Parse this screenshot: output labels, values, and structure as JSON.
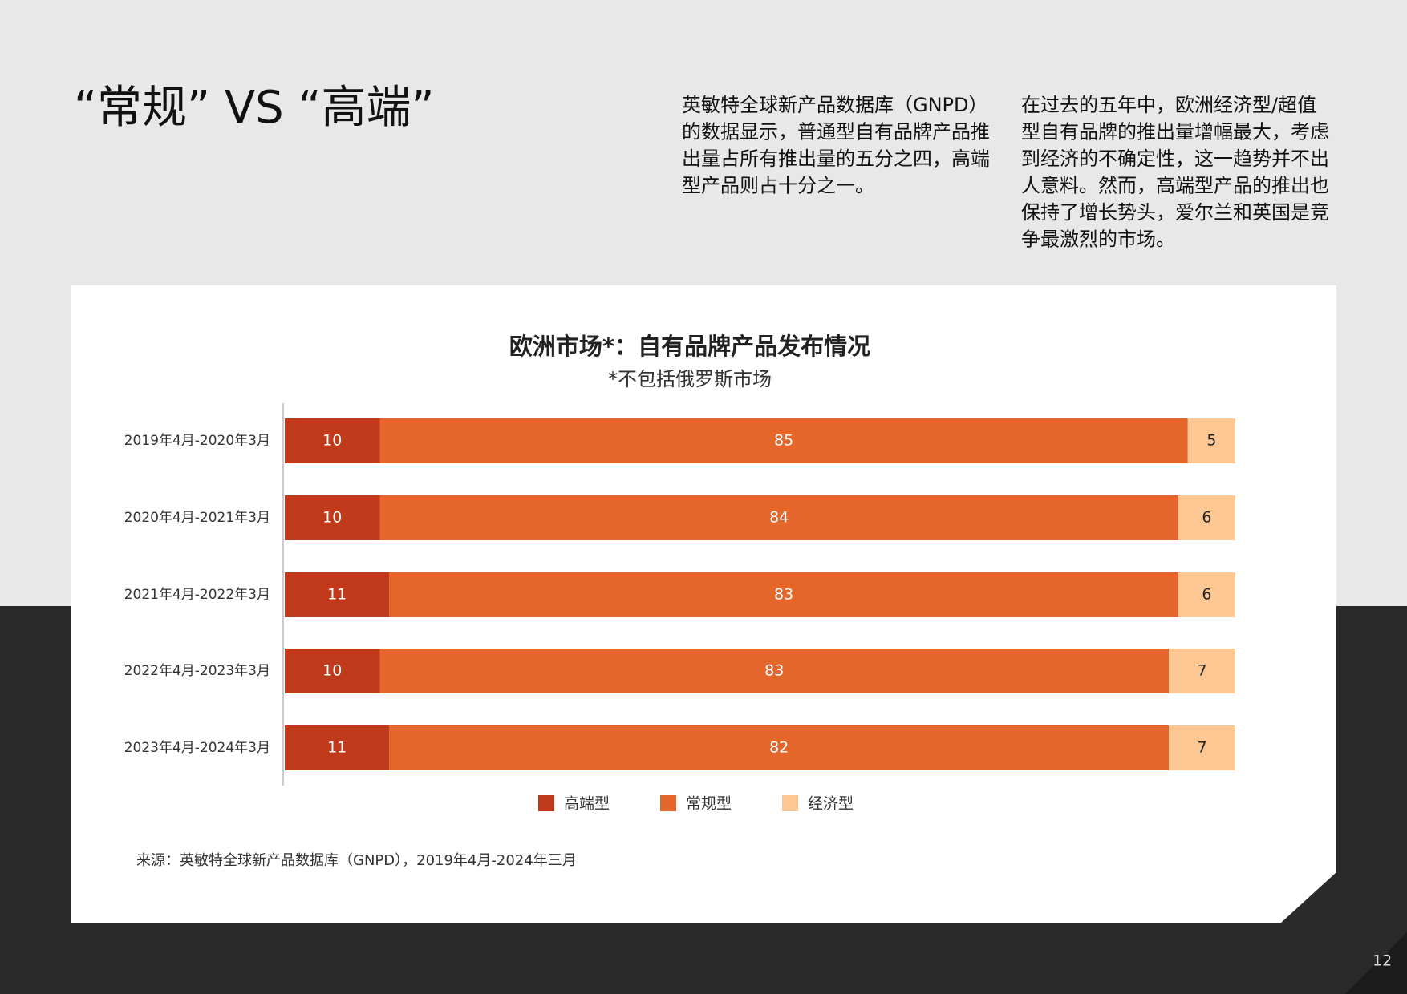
{
  "header": {
    "title": "“常规” VS “高端”"
  },
  "paragraphs": [
    [
      "英敏特全球新产品数据库（GNPD）",
      "的数据显示，普通型自有品牌产品推",
      "出量占所有推出量的五分之四，高端",
      "型产品则占十分之一。"
    ],
    [
      "在过去的五年中，欧洲经济型/超值",
      "型自有品牌的推出量增幅最大，考虑",
      "到经济的不确定性，这一趋势并不出",
      "人意料。然而，高端型产品的推出也",
      "保持了增长势头，爱尔兰和英国是竞",
      "争最激烈的市场。"
    ]
  ],
  "chart_data": {
    "type": "stacked-bar-horizontal",
    "title": "欧洲市场*：自有品牌产品发布情况",
    "subtitle": "*不包括俄罗斯市场",
    "categories": [
      "2019年4月-2020年3月",
      "2020年4月-2021年3月",
      "2021年4月-2022年3月",
      "2022年4月-2023年3月",
      "2023年4月-2024年3月"
    ],
    "series": [
      {
        "name": "高端型",
        "color": "#c0391b",
        "label_color": "#ffffff",
        "values": [
          10,
          10,
          11,
          10,
          11
        ]
      },
      {
        "name": "常规型",
        "color": "#e5662a",
        "label_color": "#ffffff",
        "values": [
          85,
          84,
          83,
          83,
          82
        ]
      },
      {
        "name": "经济型",
        "color": "#fdc894",
        "label_color": "#222222",
        "values": [
          5,
          6,
          6,
          7,
          7
        ]
      }
    ],
    "xlim": [
      0,
      100
    ]
  },
  "source": "来源：英敏特全球新产品数据库（GNPD），2019年4月-2024年三月",
  "page_number": "12"
}
